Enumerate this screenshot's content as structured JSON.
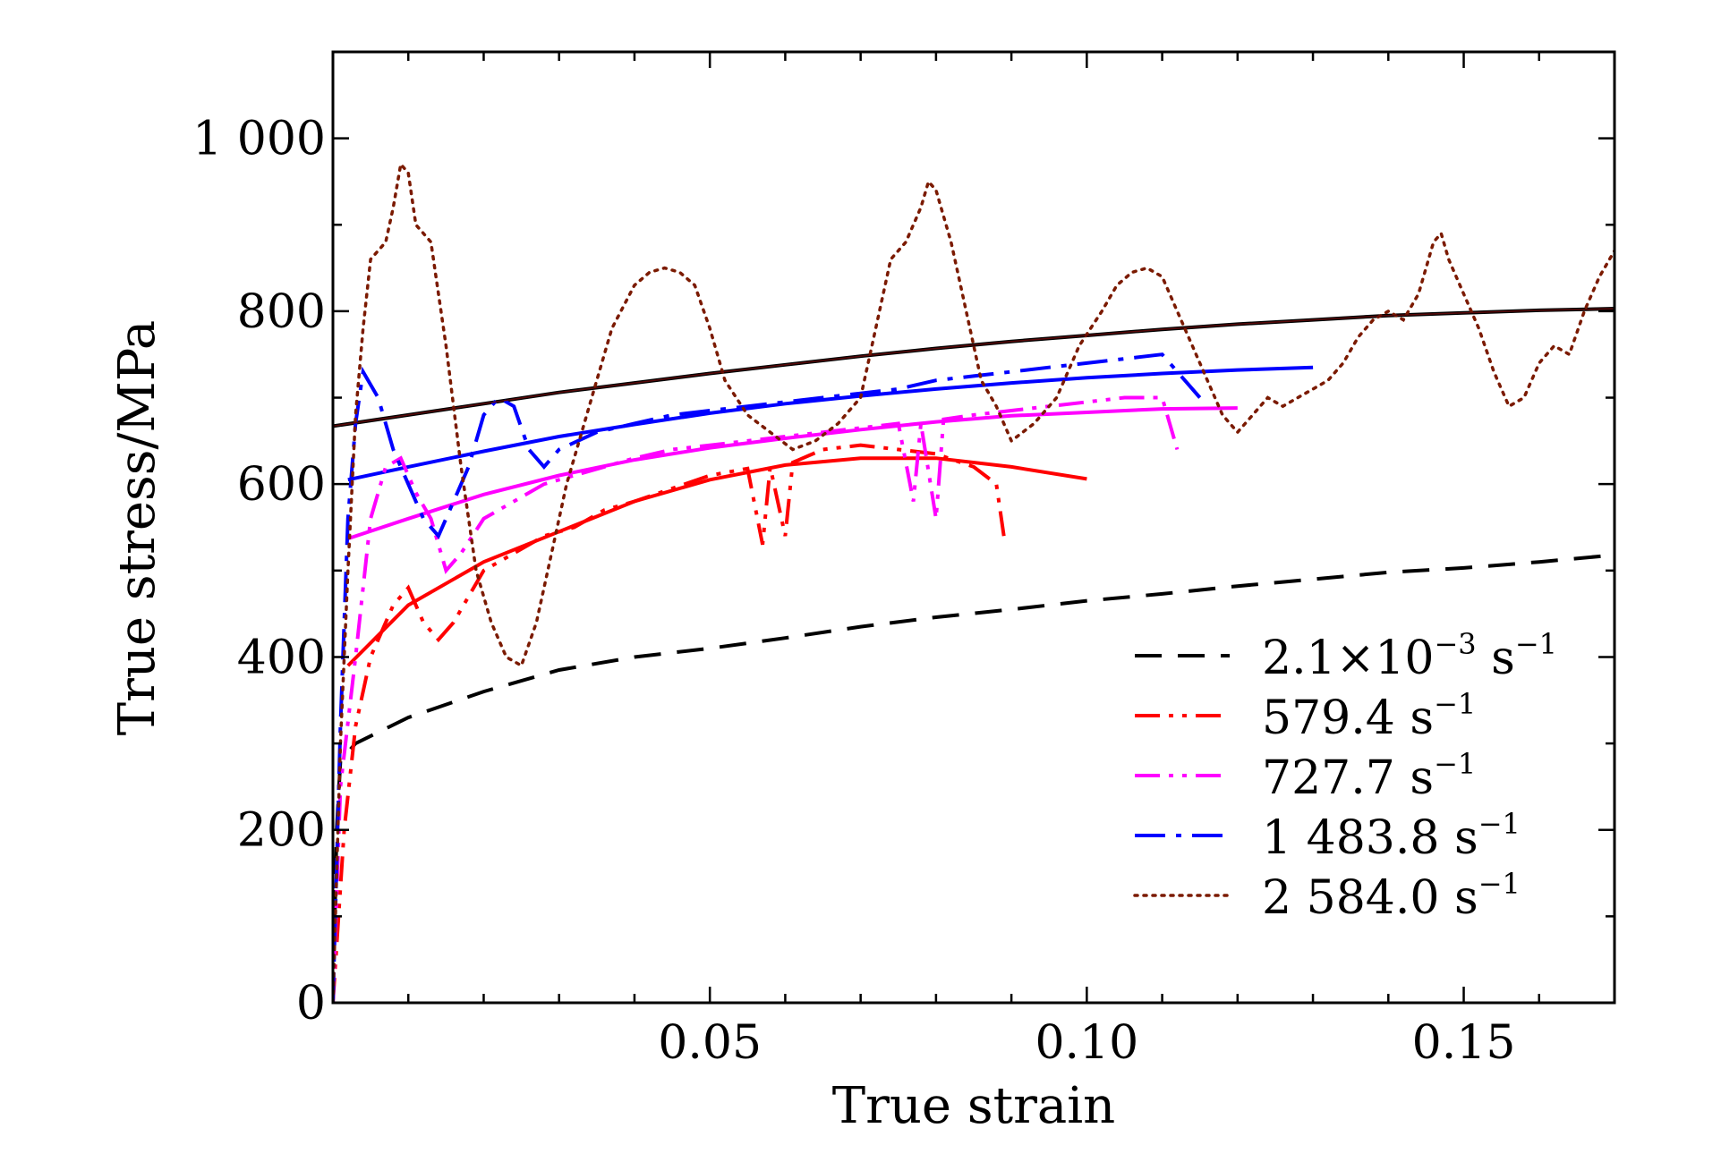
{
  "chart_data": {
    "type": "line",
    "xlabel": "True strain",
    "ylabel": "True stress/MPa",
    "xlim": [
      0,
      0.17
    ],
    "ylim": [
      0,
      1100
    ],
    "xticks": [
      {
        "value": 0.05,
        "label": "0.05"
      },
      {
        "value": 0.1,
        "label": "0.10"
      },
      {
        "value": 0.15,
        "label": "0.15"
      }
    ],
    "yticks": [
      {
        "value": 0,
        "label": "0"
      },
      {
        "value": 200,
        "label": "200"
      },
      {
        "value": 400,
        "label": "400"
      },
      {
        "value": 600,
        "label": "600"
      },
      {
        "value": 800,
        "label": "800"
      },
      {
        "value": 1000,
        "label": "1 000"
      }
    ],
    "legend_position": "lower-right",
    "series": [
      {
        "name": "2.1×10⁻³ s⁻¹",
        "legend_main": "2.1×10",
        "legend_sup1": "−3",
        "legend_mid": " s",
        "legend_sup2": "−1",
        "color": "#000000",
        "style": "dashed",
        "points": [
          [
            0,
            0
          ],
          [
            0.0005,
            200
          ],
          [
            0.001,
            280
          ],
          [
            0.003,
            300
          ],
          [
            0.01,
            330
          ],
          [
            0.02,
            360
          ],
          [
            0.03,
            385
          ],
          [
            0.04,
            400
          ],
          [
            0.05,
            410
          ],
          [
            0.06,
            422
          ],
          [
            0.07,
            435
          ],
          [
            0.08,
            446
          ],
          [
            0.09,
            455
          ],
          [
            0.1,
            465
          ],
          [
            0.11,
            473
          ],
          [
            0.12,
            482
          ],
          [
            0.13,
            490
          ],
          [
            0.14,
            498
          ],
          [
            0.15,
            503
          ],
          [
            0.16,
            510
          ],
          [
            0.17,
            518
          ]
        ]
      },
      {
        "name": "579.4 s⁻¹",
        "legend_main": "579.4 s",
        "legend_sup1": "−1",
        "color": "#ff0000",
        "style": "dash-dot-dot",
        "points": [
          [
            0,
            0
          ],
          [
            0.0015,
            200
          ],
          [
            0.003,
            320
          ],
          [
            0.005,
            400
          ],
          [
            0.008,
            460
          ],
          [
            0.01,
            480
          ],
          [
            0.012,
            440
          ],
          [
            0.014,
            420
          ],
          [
            0.016,
            440
          ],
          [
            0.018,
            470
          ],
          [
            0.02,
            500
          ],
          [
            0.024,
            520
          ],
          [
            0.028,
            540
          ],
          [
            0.032,
            550
          ],
          [
            0.036,
            570
          ],
          [
            0.04,
            580
          ],
          [
            0.045,
            595
          ],
          [
            0.05,
            610
          ],
          [
            0.055,
            618
          ],
          [
            0.057,
            530
          ],
          [
            0.058,
            620
          ],
          [
            0.06,
            540
          ],
          [
            0.061,
            625
          ],
          [
            0.065,
            640
          ],
          [
            0.07,
            645
          ],
          [
            0.075,
            640
          ],
          [
            0.08,
            635
          ],
          [
            0.085,
            620
          ],
          [
            0.088,
            600
          ],
          [
            0.089,
            540
          ]
        ],
        "fit_points": [
          [
            0.002,
            390
          ],
          [
            0.01,
            460
          ],
          [
            0.02,
            510
          ],
          [
            0.03,
            545
          ],
          [
            0.04,
            580
          ],
          [
            0.05,
            605
          ],
          [
            0.06,
            622
          ],
          [
            0.07,
            630
          ],
          [
            0.08,
            630
          ],
          [
            0.09,
            620
          ],
          [
            0.1,
            606
          ]
        ]
      },
      {
        "name": "727.7 s⁻¹",
        "legend_main": "727.7 s",
        "legend_sup1": "−1",
        "color": "#ff00ff",
        "style": "dash-dot-dot",
        "points": [
          [
            0,
            0
          ],
          [
            0.001,
            250
          ],
          [
            0.003,
            400
          ],
          [
            0.005,
            560
          ],
          [
            0.007,
            620
          ],
          [
            0.009,
            630
          ],
          [
            0.011,
            590
          ],
          [
            0.013,
            560
          ],
          [
            0.015,
            500
          ],
          [
            0.017,
            520
          ],
          [
            0.02,
            560
          ],
          [
            0.024,
            580
          ],
          [
            0.028,
            600
          ],
          [
            0.032,
            610
          ],
          [
            0.036,
            620
          ],
          [
            0.04,
            630
          ],
          [
            0.045,
            640
          ],
          [
            0.05,
            645
          ],
          [
            0.055,
            650
          ],
          [
            0.06,
            655
          ],
          [
            0.065,
            660
          ],
          [
            0.07,
            665
          ],
          [
            0.075,
            670
          ],
          [
            0.077,
            580
          ],
          [
            0.078,
            670
          ],
          [
            0.08,
            560
          ],
          [
            0.081,
            675
          ],
          [
            0.085,
            680
          ],
          [
            0.09,
            685
          ],
          [
            0.095,
            690
          ],
          [
            0.1,
            695
          ],
          [
            0.105,
            700
          ],
          [
            0.11,
            700
          ],
          [
            0.112,
            640
          ]
        ],
        "fit_points": [
          [
            0.002,
            537
          ],
          [
            0.01,
            560
          ],
          [
            0.02,
            588
          ],
          [
            0.03,
            610
          ],
          [
            0.04,
            628
          ],
          [
            0.05,
            642
          ],
          [
            0.06,
            653
          ],
          [
            0.07,
            663
          ],
          [
            0.08,
            672
          ],
          [
            0.09,
            679
          ],
          [
            0.1,
            683
          ],
          [
            0.11,
            687
          ],
          [
            0.12,
            688
          ]
        ]
      },
      {
        "name": "1 483.8 s⁻¹",
        "legend_main": "1 483.8 s",
        "legend_sup1": "−1",
        "color": "#0000ff",
        "style": "dash-dot",
        "points": [
          [
            0,
            0
          ],
          [
            0.001,
            320
          ],
          [
            0.002,
            560
          ],
          [
            0.003,
            670
          ],
          [
            0.004,
            730
          ],
          [
            0.006,
            700
          ],
          [
            0.008,
            640
          ],
          [
            0.01,
            600
          ],
          [
            0.012,
            560
          ],
          [
            0.014,
            540
          ],
          [
            0.016,
            580
          ],
          [
            0.018,
            620
          ],
          [
            0.02,
            680
          ],
          [
            0.022,
            700
          ],
          [
            0.024,
            690
          ],
          [
            0.026,
            640
          ],
          [
            0.028,
            620
          ],
          [
            0.03,
            640
          ],
          [
            0.035,
            660
          ],
          [
            0.04,
            670
          ],
          [
            0.045,
            680
          ],
          [
            0.05,
            685
          ],
          [
            0.055,
            690
          ],
          [
            0.06,
            695
          ],
          [
            0.065,
            700
          ],
          [
            0.07,
            705
          ],
          [
            0.075,
            710
          ],
          [
            0.08,
            720
          ],
          [
            0.085,
            725
          ],
          [
            0.09,
            730
          ],
          [
            0.095,
            735
          ],
          [
            0.1,
            740
          ],
          [
            0.105,
            745
          ],
          [
            0.11,
            750
          ],
          [
            0.113,
            720
          ],
          [
            0.115,
            700
          ]
        ],
        "fit_points": [
          [
            0.002,
            605
          ],
          [
            0.01,
            620
          ],
          [
            0.02,
            638
          ],
          [
            0.03,
            655
          ],
          [
            0.04,
            669
          ],
          [
            0.05,
            682
          ],
          [
            0.06,
            693
          ],
          [
            0.07,
            702
          ],
          [
            0.08,
            710
          ],
          [
            0.09,
            717
          ],
          [
            0.1,
            723
          ],
          [
            0.11,
            728
          ],
          [
            0.12,
            732
          ],
          [
            0.13,
            735
          ]
        ]
      },
      {
        "name": "2 584.0 s⁻¹",
        "legend_main": "2 584.0 s",
        "legend_sup1": "−1",
        "color": "#7b1a00",
        "style": "dotted",
        "points": [
          [
            0,
            0
          ],
          [
            0.001,
            300
          ],
          [
            0.002,
            500
          ],
          [
            0.003,
            680
          ],
          [
            0.004,
            780
          ],
          [
            0.005,
            860
          ],
          [
            0.007,
            880
          ],
          [
            0.008,
            920
          ],
          [
            0.009,
            970
          ],
          [
            0.01,
            960
          ],
          [
            0.011,
            900
          ],
          [
            0.012,
            890
          ],
          [
            0.013,
            880
          ],
          [
            0.015,
            760
          ],
          [
            0.017,
            620
          ],
          [
            0.019,
            500
          ],
          [
            0.021,
            440
          ],
          [
            0.023,
            400
          ],
          [
            0.025,
            390
          ],
          [
            0.027,
            440
          ],
          [
            0.029,
            520
          ],
          [
            0.031,
            600
          ],
          [
            0.033,
            660
          ],
          [
            0.035,
            720
          ],
          [
            0.037,
            780
          ],
          [
            0.04,
            830
          ],
          [
            0.042,
            845
          ],
          [
            0.044,
            850
          ],
          [
            0.046,
            845
          ],
          [
            0.048,
            830
          ],
          [
            0.05,
            780
          ],
          [
            0.052,
            720
          ],
          [
            0.055,
            680
          ],
          [
            0.058,
            660
          ],
          [
            0.061,
            640
          ],
          [
            0.064,
            650
          ],
          [
            0.067,
            670
          ],
          [
            0.07,
            700
          ],
          [
            0.072,
            780
          ],
          [
            0.074,
            860
          ],
          [
            0.076,
            880
          ],
          [
            0.078,
            920
          ],
          [
            0.079,
            950
          ],
          [
            0.08,
            940
          ],
          [
            0.082,
            880
          ],
          [
            0.084,
            800
          ],
          [
            0.086,
            720
          ],
          [
            0.088,
            690
          ],
          [
            0.09,
            650
          ],
          [
            0.093,
            670
          ],
          [
            0.096,
            700
          ],
          [
            0.099,
            760
          ],
          [
            0.102,
            800
          ],
          [
            0.104,
            830
          ],
          [
            0.106,
            845
          ],
          [
            0.108,
            850
          ],
          [
            0.11,
            840
          ],
          [
            0.112,
            800
          ],
          [
            0.114,
            760
          ],
          [
            0.116,
            720
          ],
          [
            0.118,
            680
          ],
          [
            0.12,
            660
          ],
          [
            0.122,
            680
          ],
          [
            0.124,
            700
          ],
          [
            0.126,
            690
          ],
          [
            0.128,
            700
          ],
          [
            0.13,
            710
          ],
          [
            0.132,
            720
          ],
          [
            0.134,
            740
          ],
          [
            0.136,
            770
          ],
          [
            0.138,
            790
          ],
          [
            0.14,
            800
          ],
          [
            0.142,
            790
          ],
          [
            0.144,
            820
          ],
          [
            0.146,
            880
          ],
          [
            0.147,
            890
          ],
          [
            0.148,
            860
          ],
          [
            0.15,
            820
          ],
          [
            0.152,
            780
          ],
          [
            0.154,
            730
          ],
          [
            0.156,
            690
          ],
          [
            0.158,
            700
          ],
          [
            0.16,
            740
          ],
          [
            0.162,
            760
          ],
          [
            0.164,
            750
          ],
          [
            0.166,
            800
          ],
          [
            0.168,
            840
          ],
          [
            0.17,
            870
          ]
        ],
        "fit_points": [
          [
            0,
            667
          ],
          [
            0.01,
            680
          ],
          [
            0.02,
            693
          ],
          [
            0.03,
            706
          ],
          [
            0.04,
            717
          ],
          [
            0.05,
            728
          ],
          [
            0.06,
            738
          ],
          [
            0.07,
            748
          ],
          [
            0.08,
            757
          ],
          [
            0.09,
            765
          ],
          [
            0.1,
            772
          ],
          [
            0.11,
            779
          ],
          [
            0.12,
            785
          ],
          [
            0.13,
            790
          ],
          [
            0.14,
            795
          ],
          [
            0.15,
            798
          ],
          [
            0.16,
            801
          ],
          [
            0.17,
            803
          ]
        ]
      }
    ]
  }
}
